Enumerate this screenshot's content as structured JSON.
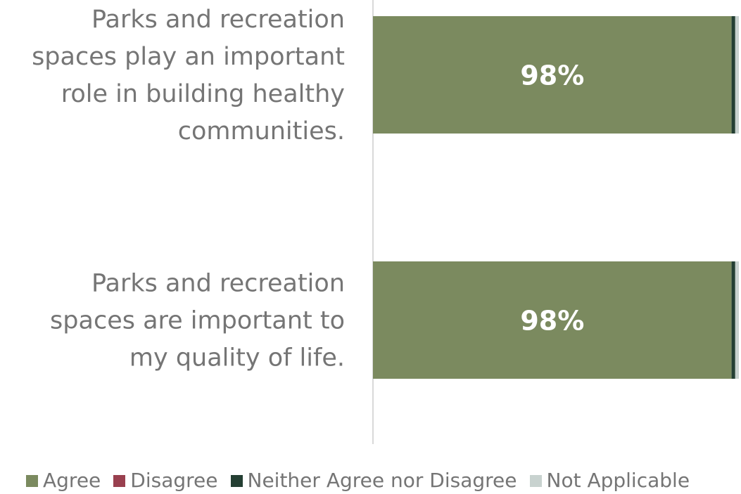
{
  "chart_data": {
    "type": "bar",
    "orientation": "horizontal",
    "stacked": true,
    "categories": [
      "Parks and recreation spaces play an important role in building healthy communities.",
      "Parks and recreation spaces are important to my quality of life."
    ],
    "series": [
      {
        "name": "Agree",
        "color": "#7b8a5f",
        "values": [
          98,
          98
        ],
        "labels": [
          "98%",
          "98%"
        ]
      },
      {
        "name": "Disagree",
        "color": "#99404f",
        "values": [
          0,
          0
        ]
      },
      {
        "name": "Neither Agree nor Disagree",
        "color": "#243f33",
        "values": [
          1,
          1
        ]
      },
      {
        "name": "Not Applicable",
        "color": "#c8d2cf",
        "values": [
          1,
          1
        ]
      }
    ],
    "xlim": [
      0,
      100
    ],
    "grid": false,
    "legend": "bottom"
  }
}
